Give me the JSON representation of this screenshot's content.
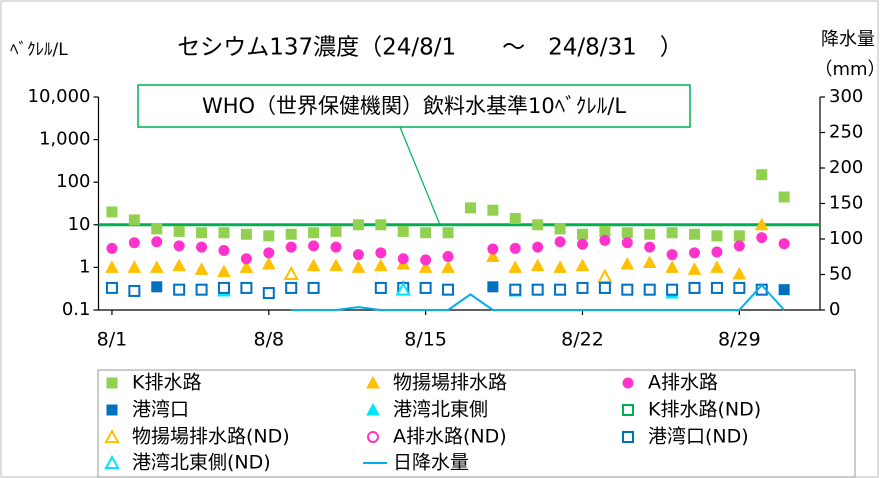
{
  "chart_data": {
    "type": "scatter",
    "title": "セシウム137濃度（24/8/1　　～　24/8/31　）",
    "y_label": "ﾍﾞｸﾚﾙ/L",
    "y2_label": "降水量",
    "y2_unit": "（mm）",
    "annotation": "WHO（世界保健機関）飲料水基準10ﾍﾞｸﾚﾙ/L",
    "reference_line": {
      "value": 10,
      "color": "#00b050"
    },
    "log_y": true,
    "legend": "bottom",
    "x": [
      1,
      2,
      3,
      4,
      5,
      6,
      7,
      8,
      9,
      10,
      11,
      12,
      13,
      14,
      15,
      16,
      17,
      18,
      19,
      20,
      21,
      22,
      23,
      24,
      25,
      26,
      27,
      28,
      29,
      30,
      31
    ],
    "xlim": [
      0.4,
      32.6
    ],
    "xticks": [
      {
        "value": 1,
        "label": "8/1"
      },
      {
        "value": 8,
        "label": "8/8"
      },
      {
        "value": 15,
        "label": "8/15"
      },
      {
        "value": 22,
        "label": "8/22"
      },
      {
        "value": 29,
        "label": "8/29"
      }
    ],
    "ylim": [
      0.1,
      10000
    ],
    "yticks": [
      {
        "value": 10000,
        "label": "10,000"
      },
      {
        "value": 1000,
        "label": "1,000"
      },
      100,
      10,
      1,
      0.1
    ],
    "y2lim": [
      0,
      300
    ],
    "y2ticks": [
      0,
      50,
      100,
      150,
      200,
      250,
      300
    ],
    "series": [
      {
        "name": "K排水路",
        "color": "#92d050",
        "marker": "square",
        "filled": true,
        "values": [
          20,
          13,
          8,
          7,
          6.5,
          6.5,
          6,
          5.5,
          6,
          6.5,
          7,
          10,
          10,
          7,
          6.5,
          6.5,
          25,
          22,
          14,
          10,
          8,
          6,
          7,
          6.5,
          6,
          6.5,
          6,
          5.5,
          5.5,
          150,
          45
        ]
      },
      {
        "name": "物揚場排水路",
        "color": "#ffc000",
        "marker": "triangle",
        "filled": true,
        "values": [
          1,
          1,
          1,
          1.1,
          0.9,
          0.8,
          1,
          1.2,
          null,
          1.1,
          1.1,
          1,
          1.1,
          1.2,
          1,
          1,
          null,
          1.8,
          1,
          1.1,
          1,
          1.1,
          null,
          1.2,
          1.3,
          1,
          0.9,
          1,
          0.7,
          10,
          null
        ]
      },
      {
        "name": "A排水路",
        "color": "#ff33cc",
        "marker": "circle",
        "filled": true,
        "values": [
          2.8,
          3.8,
          4,
          3.2,
          3,
          2.5,
          1.6,
          2.2,
          3,
          3.2,
          3,
          2,
          2.2,
          1.6,
          1.5,
          1.8,
          null,
          2.7,
          2.8,
          3,
          4,
          3.5,
          4.3,
          3.8,
          3,
          2,
          2.2,
          2.3,
          3.2,
          5,
          3.6
        ]
      },
      {
        "name": "港湾口",
        "color": "#0070c0",
        "marker": "square",
        "filled": true,
        "values": [
          null,
          null,
          0.35,
          null,
          null,
          null,
          null,
          null,
          null,
          null,
          null,
          null,
          null,
          null,
          null,
          null,
          null,
          0.35,
          null,
          null,
          null,
          null,
          null,
          null,
          null,
          null,
          null,
          null,
          null,
          null,
          0.3
        ]
      },
      {
        "name": "港湾北東側",
        "color": "#00e5ff",
        "marker": "triangle",
        "filled": true,
        "values": [
          null,
          null,
          null,
          null,
          null,
          0.28,
          null,
          null,
          null,
          null,
          null,
          null,
          null,
          0.35,
          null,
          null,
          null,
          null,
          0.28,
          null,
          null,
          null,
          null,
          null,
          null,
          0.25,
          null,
          null,
          null,
          null,
          null
        ]
      },
      {
        "name": "K排水路(ND)",
        "color": "#00b050",
        "marker": "square",
        "filled": false,
        "values": [
          null,
          null,
          null,
          null,
          null,
          null,
          null,
          null,
          null,
          null,
          null,
          null,
          null,
          null,
          null,
          null,
          null,
          null,
          null,
          null,
          null,
          null,
          null,
          null,
          null,
          null,
          null,
          null,
          null,
          null,
          null
        ]
      },
      {
        "name": "物揚場排水路(ND)",
        "color": "#ffc000",
        "marker": "triangle",
        "filled": false,
        "values": [
          null,
          null,
          null,
          null,
          null,
          null,
          null,
          null,
          0.7,
          null,
          null,
          null,
          null,
          null,
          null,
          null,
          null,
          null,
          null,
          null,
          null,
          null,
          0.6,
          null,
          null,
          null,
          null,
          null,
          null,
          null,
          null
        ]
      },
      {
        "name": "A排水路(ND)",
        "color": "#ff33cc",
        "marker": "circle",
        "filled": false,
        "values": [
          null,
          null,
          null,
          null,
          null,
          null,
          null,
          null,
          null,
          null,
          null,
          null,
          null,
          null,
          null,
          null,
          null,
          null,
          null,
          null,
          null,
          null,
          null,
          null,
          null,
          null,
          null,
          null,
          null,
          null,
          null
        ]
      },
      {
        "name": "港湾口(ND)",
        "color": "#0070c0",
        "marker": "square",
        "filled": false,
        "values": [
          0.33,
          0.28,
          null,
          0.3,
          0.3,
          0.33,
          0.33,
          0.25,
          0.33,
          0.33,
          null,
          null,
          0.33,
          0.33,
          0.33,
          0.3,
          null,
          null,
          0.3,
          0.3,
          0.3,
          0.33,
          0.33,
          0.3,
          0.3,
          0.3,
          0.33,
          0.33,
          0.33,
          0.3,
          null
        ]
      },
      {
        "name": "港湾北東側(ND)",
        "color": "#00e5ff",
        "marker": "triangle",
        "filled": false,
        "values": [
          null,
          null,
          null,
          null,
          null,
          null,
          null,
          null,
          null,
          null,
          null,
          null,
          null,
          0.3,
          null,
          null,
          null,
          null,
          null,
          null,
          null,
          null,
          null,
          null,
          null,
          null,
          null,
          null,
          null,
          null,
          null
        ]
      },
      {
        "name": "日降水量",
        "color": "#00b0f0",
        "marker": "line",
        "axis": "y2",
        "values": [
          null,
          null,
          null,
          null,
          null,
          null,
          null,
          null,
          0,
          0,
          0,
          4,
          0,
          0,
          0,
          0,
          22,
          0,
          0,
          0,
          0,
          0,
          0,
          0,
          0,
          0,
          0,
          0,
          0,
          35,
          0
        ]
      }
    ]
  }
}
